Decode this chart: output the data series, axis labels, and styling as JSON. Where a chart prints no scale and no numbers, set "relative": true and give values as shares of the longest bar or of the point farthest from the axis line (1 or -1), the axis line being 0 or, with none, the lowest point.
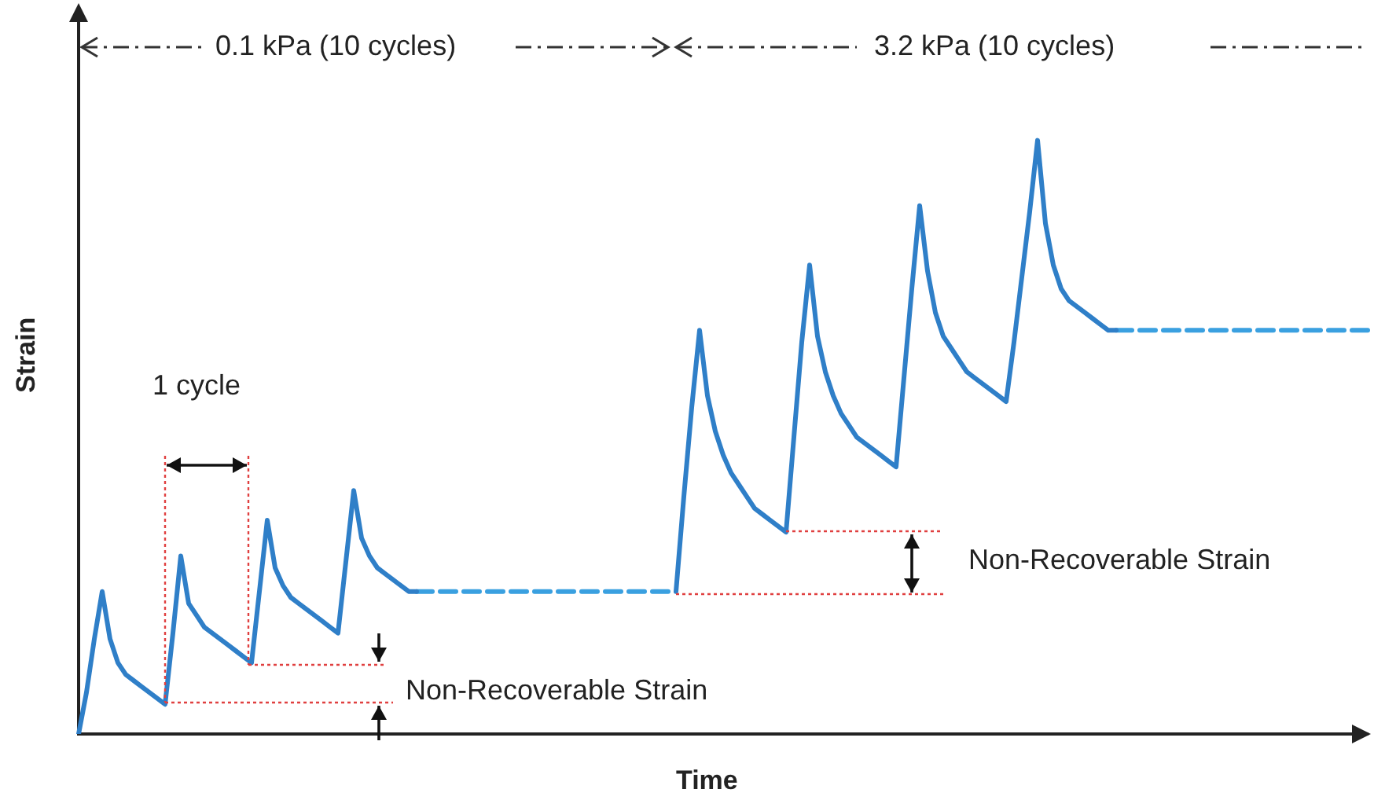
{
  "chart_data": {
    "type": "line",
    "relative": true,
    "xlabel": "Time",
    "ylabel": "Strain",
    "grid": false,
    "legend": false,
    "marker": "none",
    "line_style": "solid",
    "annotations": [
      "0.1 kPa (10 cycles)",
      "3.2 kPa (10 cycles)",
      "1 cycle",
      "Non-Recoverable Strain",
      "Non-Recoverable Strain"
    ],
    "categories": [
      null,
      null,
      null,
      null,
      null,
      null,
      null,
      null,
      null,
      null,
      null,
      null,
      null,
      null,
      null,
      null,
      null,
      null,
      null,
      null,
      null,
      null,
      null,
      null,
      null,
      null,
      null,
      null,
      null,
      null,
      null,
      null,
      null,
      null,
      null,
      null,
      null,
      null,
      null,
      null,
      null,
      null,
      null,
      null,
      null,
      null,
      null,
      null,
      null,
      null,
      null,
      null,
      null,
      null,
      null,
      null,
      null,
      null,
      null,
      null,
      null,
      null,
      null,
      null,
      null,
      null,
      null,
      null,
      null,
      null,
      null,
      null,
      null,
      null,
      null,
      null,
      null,
      null,
      null,
      null,
      null,
      null,
      null,
      null,
      null,
      null,
      null,
      null,
      null,
      null,
      null,
      null,
      null,
      null,
      null,
      null,
      null,
      null,
      null,
      null,
      null,
      null,
      null,
      null,
      null,
      null,
      null,
      null,
      null,
      null,
      null,
      null,
      null,
      null,
      null,
      null,
      null,
      null,
      null,
      null,
      null,
      null,
      null,
      null,
      null,
      null,
      null,
      null,
      null,
      null,
      null,
      null,
      null,
      null,
      null,
      null,
      null,
      null,
      null,
      null,
      null,
      null,
      null,
      null,
      null,
      null,
      null,
      null,
      null,
      null,
      null,
      null,
      null,
      null,
      null,
      null,
      null,
      null,
      null,
      null,
      null,
      null,
      null,
      null,
      null
    ],
    "series": [
      {
        "color": "#2f7fc8",
        "values": [
          0,
          0.07,
          0.16,
          0.24,
          0.16,
          0.12,
          0.1,
          0.09,
          0.08,
          0.07,
          0.06,
          0.05,
          0.17,
          0.3,
          0.22,
          0.2,
          0.18,
          0.17,
          0.16,
          0.15,
          0.14,
          0.13,
          0.12,
          0.24,
          0.36,
          0.28,
          0.25,
          0.23,
          0.22,
          0.21,
          0.2,
          0.19,
          0.18,
          0.17,
          0.29,
          0.41,
          0.33,
          0.3,
          0.28,
          0.27,
          0.26,
          0.25,
          0.24,
          0.24,
          null,
          null,
          null,
          null,
          null,
          null,
          null,
          null,
          null,
          null,
          null,
          null,
          null,
          null,
          null,
          null,
          null,
          null,
          null,
          null,
          null,
          null,
          null,
          null,
          null,
          null,
          null,
          null,
          null,
          null,
          null,
          null,
          null,
          null,
          null,
          null,
          null,
          null,
          null,
          null,
          null,
          null,
          null,
          null,
          null,
          null,
          null,
          null,
          null,
          null,
          null,
          null,
          null,
          null,
          null,
          null,
          null,
          null,
          null,
          null,
          null,
          null,
          null,
          null,
          null,
          null,
          null,
          null,
          null,
          null,
          null,
          null,
          null,
          null,
          null,
          null,
          null,
          null,
          null,
          null,
          null,
          null,
          null,
          null,
          null,
          null,
          null,
          null,
          null,
          null,
          null,
          null,
          null,
          null,
          null,
          null,
          null,
          null,
          null,
          null,
          null,
          null,
          null,
          null,
          null,
          null,
          null,
          null,
          null,
          null,
          null,
          null,
          null,
          null,
          null,
          null,
          null,
          null,
          null,
          null,
          null
        ]
      },
      {
        "color": "#3aa0e0",
        "line_style": "dashed",
        "values": [
          null,
          null,
          null,
          null,
          null,
          null,
          null,
          null,
          null,
          null,
          null,
          null,
          null,
          null,
          null,
          null,
          null,
          null,
          null,
          null,
          null,
          null,
          null,
          null,
          null,
          null,
          null,
          null,
          null,
          null,
          null,
          null,
          null,
          null,
          null,
          null,
          null,
          null,
          null,
          null,
          null,
          null,
          null,
          0.24,
          0.24,
          0.24,
          0.24,
          0.24,
          0.24,
          0.24,
          0.24,
          0.24,
          0.24,
          0.24,
          0.24,
          0.24,
          0.24,
          0.24,
          0.24,
          0.24,
          0.24,
          0.24,
          0.24,
          0.24,
          0.24,
          0.24,
          0.24,
          0.24,
          0.24,
          0.24,
          0.24,
          0.24,
          0.24,
          0.24,
          0.24,
          0.24,
          0.24,
          null,
          null,
          null,
          null,
          null,
          null,
          null,
          null,
          null,
          null,
          null,
          null,
          null,
          null,
          null,
          null,
          null,
          null,
          null,
          null,
          null,
          null,
          null,
          null,
          null,
          null,
          null,
          null,
          null,
          null,
          null,
          null,
          null,
          null,
          null,
          null,
          null,
          null,
          null,
          null,
          null,
          null,
          null,
          null,
          null,
          null,
          null,
          null,
          null,
          null,
          null,
          null,
          null,
          null,
          null,
          null,
          null,
          null,
          null,
          null,
          null,
          null,
          null,
          null,
          null,
          null,
          null,
          null,
          null,
          null,
          null,
          null,
          null,
          null,
          null,
          null,
          null,
          null,
          null,
          null,
          null,
          null,
          null,
          null,
          null,
          null,
          null,
          null
        ]
      },
      {
        "color": "#2f7fc8",
        "values": [
          null,
          null,
          null,
          null,
          null,
          null,
          null,
          null,
          null,
          null,
          null,
          null,
          null,
          null,
          null,
          null,
          null,
          null,
          null,
          null,
          null,
          null,
          null,
          null,
          null,
          null,
          null,
          null,
          null,
          null,
          null,
          null,
          null,
          null,
          null,
          null,
          null,
          null,
          null,
          null,
          null,
          null,
          null,
          null,
          null,
          null,
          null,
          null,
          null,
          null,
          null,
          null,
          null,
          null,
          null,
          null,
          null,
          null,
          null,
          null,
          null,
          null,
          null,
          null,
          null,
          null,
          null,
          null,
          null,
          null,
          null,
          null,
          null,
          null,
          null,
          null,
          0.24,
          0.4,
          0.55,
          0.68,
          0.57,
          0.51,
          0.47,
          0.44,
          0.42,
          0.4,
          0.38,
          0.37,
          0.36,
          0.35,
          0.34,
          0.5,
          0.66,
          0.79,
          0.67,
          0.61,
          0.57,
          0.54,
          0.52,
          0.5,
          0.49,
          0.48,
          0.47,
          0.46,
          0.45,
          0.6,
          0.75,
          0.89,
          0.78,
          0.71,
          0.67,
          0.65,
          0.63,
          0.61,
          0.6,
          0.59,
          0.58,
          0.57,
          0.56,
          0.66,
          0.77,
          0.88,
          1,
          0.86,
          0.79,
          0.75,
          0.73,
          0.72,
          0.71,
          0.7,
          0.69,
          0.68,
          0.68,
          null,
          null,
          null,
          null,
          null,
          null,
          null,
          null,
          null,
          null,
          null,
          null,
          null,
          null,
          null,
          null,
          null,
          null,
          null,
          null,
          null,
          null,
          null,
          null,
          null,
          null,
          null,
          null,
          null,
          null,
          null,
          null
        ]
      },
      {
        "color": "#3aa0e0",
        "line_style": "dashed",
        "values": [
          null,
          null,
          null,
          null,
          null,
          null,
          null,
          null,
          null,
          null,
          null,
          null,
          null,
          null,
          null,
          null,
          null,
          null,
          null,
          null,
          null,
          null,
          null,
          null,
          null,
          null,
          null,
          null,
          null,
          null,
          null,
          null,
          null,
          null,
          null,
          null,
          null,
          null,
          null,
          null,
          null,
          null,
          null,
          null,
          null,
          null,
          null,
          null,
          null,
          null,
          null,
          null,
          null,
          null,
          null,
          null,
          null,
          null,
          null,
          null,
          null,
          null,
          null,
          null,
          null,
          null,
          null,
          null,
          null,
          null,
          null,
          null,
          null,
          null,
          null,
          null,
          null,
          null,
          null,
          null,
          null,
          null,
          null,
          null,
          null,
          null,
          null,
          null,
          null,
          null,
          null,
          null,
          null,
          null,
          null,
          null,
          null,
          null,
          null,
          null,
          null,
          null,
          null,
          null,
          null,
          null,
          null,
          null,
          null,
          null,
          null,
          null,
          null,
          null,
          null,
          null,
          null,
          null,
          null,
          null,
          null,
          null,
          null,
          null,
          null,
          null,
          null,
          null,
          null,
          null,
          null,
          null,
          0.68,
          0.68,
          0.68,
          0.68,
          0.68,
          0.68,
          0.68,
          0.68,
          0.68,
          0.68,
          0.68,
          0.68,
          0.68,
          0.68,
          0.68,
          0.68,
          0.68,
          0.68,
          0.68,
          0.68,
          0.68,
          0.68,
          0.68,
          0.68,
          0.68,
          0.68,
          0.68,
          0.68,
          0.68,
          0.68,
          0.68,
          0.68,
          0.68
        ]
      }
    ]
  }
}
